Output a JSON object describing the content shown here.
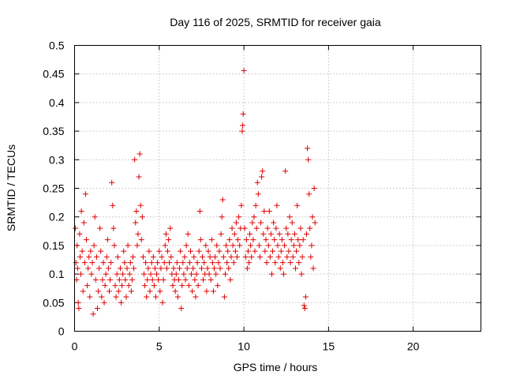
{
  "chart_data": {
    "type": "scatter",
    "title": "Day 116 of 2025, SRMTID for receiver gaia",
    "xlabel": "GPS time / hours",
    "ylabel": "SRMTID / TECUs",
    "xlim": [
      0,
      24
    ],
    "ylim": [
      0,
      0.5
    ],
    "xticks": [
      0,
      5,
      10,
      15,
      20
    ],
    "xtick_labels": [
      "0",
      "5",
      "10",
      "15",
      "20"
    ],
    "yticks": [
      0,
      0.05,
      0.1,
      0.15,
      0.2,
      0.25,
      0.3,
      0.35,
      0.4,
      0.45,
      0.5
    ],
    "ytick_labels": [
      "0",
      "0.05",
      "0.1",
      "0.15",
      "0.2",
      "0.25",
      "0.3",
      "0.35",
      "0.4",
      "0.45",
      "0.5"
    ],
    "grid": true,
    "marker": "+",
    "marker_color": "#e00000",
    "series": [
      {
        "name": "SRMTID",
        "points": [
          [
            0.05,
            0.18
          ],
          [
            0.08,
            0.12
          ],
          [
            0.12,
            0.09
          ],
          [
            0.15,
            0.15
          ],
          [
            0.18,
            0.11
          ],
          [
            0.22,
            0.05
          ],
          [
            0.25,
            0.04
          ],
          [
            0.3,
            0.17
          ],
          [
            0.33,
            0.13
          ],
          [
            0.37,
            0.1
          ],
          [
            0.4,
            0.21
          ],
          [
            0.45,
            0.14
          ],
          [
            0.5,
            0.07
          ],
          [
            0.55,
            0.19
          ],
          [
            0.6,
            0.12
          ],
          [
            0.65,
            0.24
          ],
          [
            0.7,
            0.16
          ],
          [
            0.75,
            0.08
          ],
          [
            0.8,
            0.11
          ],
          [
            0.85,
            0.13
          ],
          [
            0.9,
            0.06
          ],
          [
            0.95,
            0.14
          ],
          [
            1.0,
            0.1
          ],
          [
            1.05,
            0.12
          ],
          [
            1.1,
            0.03
          ],
          [
            1.15,
            0.15
          ],
          [
            1.2,
            0.2
          ],
          [
            1.25,
            0.09
          ],
          [
            1.3,
            0.13
          ],
          [
            1.35,
            0.04
          ],
          [
            1.4,
            0.07
          ],
          [
            1.45,
            0.11
          ],
          [
            1.5,
            0.18
          ],
          [
            1.55,
            0.14
          ],
          [
            1.6,
            0.06
          ],
          [
            1.65,
            0.09
          ],
          [
            1.7,
            0.12
          ],
          [
            1.75,
            0.05
          ],
          [
            1.8,
            0.08
          ],
          [
            1.85,
            0.1
          ],
          [
            1.9,
            0.13
          ],
          [
            1.95,
            0.16
          ],
          [
            2.0,
            0.11
          ],
          [
            2.05,
            0.07
          ],
          [
            2.1,
            0.09
          ],
          [
            2.15,
            0.12
          ],
          [
            2.2,
            0.26
          ],
          [
            2.25,
            0.22
          ],
          [
            2.3,
            0.18
          ],
          [
            2.35,
            0.15
          ],
          [
            2.4,
            0.08
          ],
          [
            2.45,
            0.06
          ],
          [
            2.5,
            0.1
          ],
          [
            2.55,
            0.13
          ],
          [
            2.6,
            0.07
          ],
          [
            2.65,
            0.09
          ],
          [
            2.7,
            0.11
          ],
          [
            2.75,
            0.05
          ],
          [
            2.8,
            0.08
          ],
          [
            2.85,
            0.1
          ],
          [
            2.9,
            0.14
          ],
          [
            2.95,
            0.12
          ],
          [
            3.0,
            0.09
          ],
          [
            3.05,
            0.06
          ],
          [
            3.1,
            0.11
          ],
          [
            3.15,
            0.15
          ],
          [
            3.2,
            0.08
          ],
          [
            3.25,
            0.1
          ],
          [
            3.3,
            0.12
          ],
          [
            3.35,
            0.07
          ],
          [
            3.4,
            0.09
          ],
          [
            3.45,
            0.13
          ],
          [
            3.5,
            0.11
          ],
          [
            3.55,
            0.3
          ],
          [
            3.6,
            0.19
          ],
          [
            3.65,
            0.21
          ],
          [
            3.7,
            0.15
          ],
          [
            3.75,
            0.17
          ],
          [
            3.8,
            0.27
          ],
          [
            3.85,
            0.31
          ],
          [
            3.9,
            0.22
          ],
          [
            3.95,
            0.16
          ],
          [
            4.0,
            0.2
          ],
          [
            4.05,
            0.13
          ],
          [
            4.1,
            0.1
          ],
          [
            4.15,
            0.08
          ],
          [
            4.2,
            0.12
          ],
          [
            4.25,
            0.06
          ],
          [
            4.3,
            0.09
          ],
          [
            4.35,
            0.11
          ],
          [
            4.4,
            0.14
          ],
          [
            4.45,
            0.07
          ],
          [
            4.5,
            0.1
          ],
          [
            4.55,
            0.12
          ],
          [
            4.6,
            0.09
          ],
          [
            4.65,
            0.13
          ],
          [
            4.7,
            0.08
          ],
          [
            4.75,
            0.11
          ],
          [
            4.8,
            0.06
          ],
          [
            4.85,
            0.1
          ],
          [
            4.9,
            0.12
          ],
          [
            4.95,
            0.09
          ],
          [
            5.0,
            0.14
          ],
          [
            5.05,
            0.07
          ],
          [
            5.1,
            0.11
          ],
          [
            5.15,
            0.13
          ],
          [
            5.2,
            0.05
          ],
          [
            5.25,
            0.09
          ],
          [
            5.3,
            0.12
          ],
          [
            5.35,
            0.15
          ],
          [
            5.4,
            0.17
          ],
          [
            5.45,
            0.11
          ],
          [
            5.5,
            0.14
          ],
          [
            5.55,
            0.16
          ],
          [
            5.6,
            0.12
          ],
          [
            5.65,
            0.18
          ],
          [
            5.7,
            0.13
          ],
          [
            5.75,
            0.1
          ],
          [
            5.8,
            0.08
          ],
          [
            5.85,
            0.11
          ],
          [
            5.9,
            0.09
          ],
          [
            5.95,
            0.07
          ],
          [
            6.0,
            0.1
          ],
          [
            6.05,
            0.12
          ],
          [
            6.1,
            0.06
          ],
          [
            6.15,
            0.09
          ],
          [
            6.2,
            0.11
          ],
          [
            6.25,
            0.14
          ],
          [
            6.3,
            0.04
          ],
          [
            6.35,
            0.08
          ],
          [
            6.4,
            0.12
          ],
          [
            6.45,
            0.1
          ],
          [
            6.5,
            0.13
          ],
          [
            6.55,
            0.09
          ],
          [
            6.6,
            0.15
          ],
          [
            6.65,
            0.11
          ],
          [
            6.7,
            0.17
          ],
          [
            6.75,
            0.08
          ],
          [
            6.8,
            0.12
          ],
          [
            6.85,
            0.14
          ],
          [
            6.9,
            0.1
          ],
          [
            6.95,
            0.07
          ],
          [
            7.0,
            0.11
          ],
          [
            7.05,
            0.13
          ],
          [
            7.1,
            0.09
          ],
          [
            7.15,
            0.06
          ],
          [
            7.2,
            0.1
          ],
          [
            7.25,
            0.12
          ],
          [
            7.3,
            0.08
          ],
          [
            7.35,
            0.14
          ],
          [
            7.4,
            0.21
          ],
          [
            7.45,
            0.16
          ],
          [
            7.5,
            0.11
          ],
          [
            7.55,
            0.13
          ],
          [
            7.6,
            0.09
          ],
          [
            7.65,
            0.12
          ],
          [
            7.7,
            0.1
          ],
          [
            7.75,
            0.15
          ],
          [
            7.8,
            0.07
          ],
          [
            7.85,
            0.11
          ],
          [
            7.9,
            0.14
          ],
          [
            7.95,
            0.1
          ],
          [
            8.0,
            0.13
          ],
          [
            8.05,
            0.09
          ],
          [
            8.1,
            0.16
          ],
          [
            8.15,
            0.12
          ],
          [
            8.2,
            0.07
          ],
          [
            8.25,
            0.11
          ],
          [
            8.3,
            0.13
          ],
          [
            8.35,
            0.1
          ],
          [
            8.4,
            0.15
          ],
          [
            8.45,
            0.08
          ],
          [
            8.5,
            0.12
          ],
          [
            8.55,
            0.14
          ],
          [
            8.6,
            0.11
          ],
          [
            8.65,
            0.17
          ],
          [
            8.7,
            0.2
          ],
          [
            8.75,
            0.23
          ],
          [
            8.8,
            0.13
          ],
          [
            8.85,
            0.06
          ],
          [
            8.9,
            0.1
          ],
          [
            8.95,
            0.15
          ],
          [
            9.0,
            0.12
          ],
          [
            9.05,
            0.14
          ],
          [
            9.1,
            0.11
          ],
          [
            9.15,
            0.16
          ],
          [
            9.2,
            0.09
          ],
          [
            9.25,
            0.13
          ],
          [
            9.3,
            0.18
          ],
          [
            9.35,
            0.15
          ],
          [
            9.4,
            0.12
          ],
          [
            9.45,
            0.17
          ],
          [
            9.5,
            0.14
          ],
          [
            9.55,
            0.19
          ],
          [
            9.6,
            0.13
          ],
          [
            9.65,
            0.16
          ],
          [
            9.7,
            0.2
          ],
          [
            9.75,
            0.15
          ],
          [
            9.8,
            0.18
          ],
          [
            9.85,
            0.22
          ],
          [
            9.9,
            0.35
          ],
          [
            9.93,
            0.36
          ],
          [
            9.96,
            0.38
          ],
          [
            10.0,
            0.456
          ],
          [
            10.05,
            0.18
          ],
          [
            10.1,
            0.13
          ],
          [
            10.15,
            0.16
          ],
          [
            10.2,
            0.11
          ],
          [
            10.25,
            0.14
          ],
          [
            10.3,
            0.12
          ],
          [
            10.35,
            0.17
          ],
          [
            10.4,
            0.15
          ],
          [
            10.45,
            0.13
          ],
          [
            10.5,
            0.19
          ],
          [
            10.55,
            0.16
          ],
          [
            10.6,
            0.2
          ],
          [
            10.65,
            0.14
          ],
          [
            10.7,
            0.22
          ],
          [
            10.75,
            0.18
          ],
          [
            10.8,
            0.26
          ],
          [
            10.85,
            0.24
          ],
          [
            10.9,
            0.15
          ],
          [
            10.95,
            0.13
          ],
          [
            11.0,
            0.19
          ],
          [
            11.05,
            0.27
          ],
          [
            11.1,
            0.28
          ],
          [
            11.15,
            0.17
          ],
          [
            11.2,
            0.21
          ],
          [
            11.25,
            0.14
          ],
          [
            11.3,
            0.16
          ],
          [
            11.35,
            0.12
          ],
          [
            11.4,
            0.18
          ],
          [
            11.45,
            0.15
          ],
          [
            11.5,
            0.21
          ],
          [
            11.55,
            0.13
          ],
          [
            11.6,
            0.17
          ],
          [
            11.65,
            0.1
          ],
          [
            11.7,
            0.14
          ],
          [
            11.75,
            0.19
          ],
          [
            11.8,
            0.16
          ],
          [
            11.85,
            0.12
          ],
          [
            11.9,
            0.18
          ],
          [
            11.95,
            0.22
          ],
          [
            12.0,
            0.15
          ],
          [
            12.05,
            0.13
          ],
          [
            12.1,
            0.17
          ],
          [
            12.15,
            0.11
          ],
          [
            12.2,
            0.14
          ],
          [
            12.25,
            0.16
          ],
          [
            12.3,
            0.12
          ],
          [
            12.35,
            0.1
          ],
          [
            12.4,
            0.15
          ],
          [
            12.45,
            0.28
          ],
          [
            12.5,
            0.18
          ],
          [
            12.55,
            0.13
          ],
          [
            12.6,
            0.17
          ],
          [
            12.65,
            0.14
          ],
          [
            12.7,
            0.2
          ],
          [
            12.75,
            0.12
          ],
          [
            12.8,
            0.16
          ],
          [
            12.85,
            0.19
          ],
          [
            12.9,
            0.13
          ],
          [
            12.95,
            0.15
          ],
          [
            13.0,
            0.17
          ],
          [
            13.05,
            0.11
          ],
          [
            13.1,
            0.14
          ],
          [
            13.15,
            0.22
          ],
          [
            13.2,
            0.16
          ],
          [
            13.25,
            0.12
          ],
          [
            13.3,
            0.15
          ],
          [
            13.35,
            0.18
          ],
          [
            13.4,
            0.1
          ],
          [
            13.45,
            0.13
          ],
          [
            13.5,
            0.16
          ],
          [
            13.55,
            0.045
          ],
          [
            13.6,
            0.04
          ],
          [
            13.65,
            0.06
          ],
          [
            13.7,
            0.17
          ],
          [
            13.75,
            0.32
          ],
          [
            13.8,
            0.3
          ],
          [
            13.85,
            0.24
          ],
          [
            13.9,
            0.18
          ],
          [
            13.95,
            0.13
          ],
          [
            14.0,
            0.15
          ],
          [
            14.05,
            0.2
          ],
          [
            14.1,
            0.11
          ],
          [
            14.15,
            0.25
          ],
          [
            14.2,
            0.19
          ]
        ]
      }
    ]
  }
}
